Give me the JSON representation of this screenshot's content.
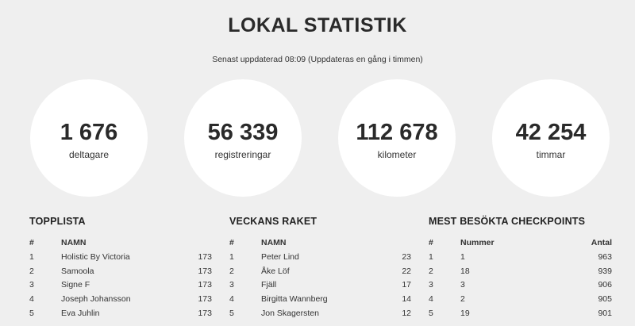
{
  "page": {
    "title": "LOKAL STATISTIK",
    "updated": "Senast uppdaterad 08:09 (Uppdateras en gång i timmen)"
  },
  "stats": [
    {
      "value": "1 676",
      "label": "deltagare"
    },
    {
      "value": "56 339",
      "label": "registreringar"
    },
    {
      "value": "112 678",
      "label": "kilometer"
    },
    {
      "value": "42 254",
      "label": "timmar"
    }
  ],
  "topplista": {
    "heading": "TOPPLISTA",
    "col_rank": "#",
    "col_name": "NAMN",
    "rows": [
      {
        "rank": "1",
        "name": "Holistic By Victoria",
        "value": "173"
      },
      {
        "rank": "2",
        "name": "Samoola",
        "value": "173"
      },
      {
        "rank": "3",
        "name": "Signe F",
        "value": "173"
      },
      {
        "rank": "4",
        "name": "Joseph Johansson",
        "value": "173"
      },
      {
        "rank": "5",
        "name": "Eva Juhlin",
        "value": "173"
      }
    ]
  },
  "raket": {
    "heading": "VECKANS RAKET",
    "col_rank": "#",
    "col_name": "NAMN",
    "rows": [
      {
        "rank": "1",
        "name": "Peter Lind",
        "value": "23"
      },
      {
        "rank": "2",
        "name": "Åke Löf",
        "value": "22"
      },
      {
        "rank": "3",
        "name": "Fjäll",
        "value": "17"
      },
      {
        "rank": "4",
        "name": "Birgitta Wannberg",
        "value": "14"
      },
      {
        "rank": "5",
        "name": "Jon Skagersten",
        "value": "12"
      }
    ]
  },
  "checkpoints": {
    "heading": "MEST BESÖKTA CHECKPOINTS",
    "col_rank": "#",
    "col_number": "Nummer",
    "col_count": "Antal",
    "rows": [
      {
        "rank": "1",
        "number": "1",
        "count": "963"
      },
      {
        "rank": "2",
        "number": "18",
        "count": "939"
      },
      {
        "rank": "3",
        "number": "3",
        "count": "906"
      },
      {
        "rank": "4",
        "number": "2",
        "count": "905"
      },
      {
        "rank": "5",
        "number": "19",
        "count": "901"
      }
    ]
  }
}
